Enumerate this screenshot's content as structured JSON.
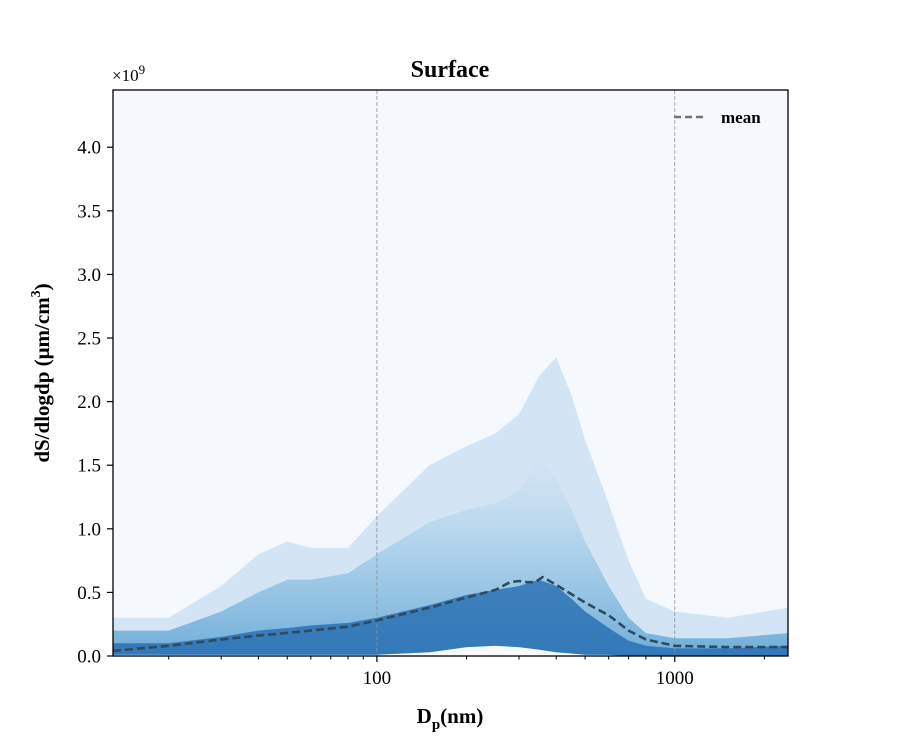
{
  "chart_data": {
    "type": "area",
    "title": "Surface",
    "xlabel": {
      "main": "D",
      "sub": "p",
      "rest": "(nm)"
    },
    "ylabel": {
      "main": "dS/dlogdp (μm/cm",
      "sup": "3",
      "end": ")"
    },
    "xscale": "log",
    "xlim": [
      13,
      2400
    ],
    "ylim": [
      0,
      4.45
    ],
    "y_multiplier": {
      "base": "×10",
      "exp": "9"
    },
    "x_ticks": [
      100,
      1000
    ],
    "x_tick_labels": [
      "100",
      "1000"
    ],
    "y_ticks": [
      0,
      0.5,
      1.0,
      1.5,
      2.0,
      2.5,
      3.0,
      3.5,
      4.0
    ],
    "y_tick_labels": [
      "0.0",
      "0.5",
      "1.0",
      "1.5",
      "2.0",
      "2.5",
      "3.0",
      "3.5",
      "4.0"
    ],
    "grid": {
      "x_major": true,
      "y": false
    },
    "legend": {
      "position": "top-right"
    },
    "colors": {
      "background": "#f5f9fe",
      "band_dark": "#1f67ad",
      "band_mid": "#4f9ad0",
      "band_light": "#b6d6ec",
      "mean": "#2f4a5e"
    },
    "series": [
      {
        "name": "mean",
        "style": "dashed",
        "x": [
          13,
          20,
          30,
          40,
          60,
          80,
          100,
          150,
          200,
          250,
          280,
          300,
          320,
          340,
          360,
          400,
          500,
          600,
          700,
          800,
          1000,
          1500,
          2400
        ],
        "y": [
          0.04,
          0.08,
          0.13,
          0.16,
          0.2,
          0.23,
          0.28,
          0.38,
          0.46,
          0.52,
          0.58,
          0.59,
          0.58,
          0.58,
          0.62,
          0.56,
          0.42,
          0.32,
          0.2,
          0.13,
          0.08,
          0.07,
          0.07
        ]
      }
    ],
    "envelope": {
      "x": [
        13,
        20,
        30,
        40,
        50,
        60,
        80,
        100,
        150,
        200,
        250,
        300,
        350,
        400,
        450,
        500,
        600,
        700,
        800,
        1000,
        1500,
        2400
      ],
      "upper": [
        0.3,
        0.3,
        0.55,
        0.8,
        0.9,
        0.85,
        0.85,
        1.1,
        1.5,
        1.65,
        1.75,
        1.9,
        2.2,
        2.35,
        2.05,
        1.7,
        1.2,
        0.75,
        0.45,
        0.35,
        0.3,
        0.38
      ],
      "core_upper": [
        0.2,
        0.2,
        0.35,
        0.5,
        0.6,
        0.6,
        0.65,
        0.8,
        1.05,
        1.15,
        1.2,
        1.3,
        1.55,
        1.4,
        1.15,
        0.9,
        0.55,
        0.3,
        0.18,
        0.14,
        0.14,
        0.18
      ],
      "dark_upper": [
        0.1,
        0.1,
        0.15,
        0.2,
        0.22,
        0.24,
        0.26,
        0.3,
        0.4,
        0.48,
        0.52,
        0.55,
        0.6,
        0.55,
        0.45,
        0.35,
        0.22,
        0.12,
        0.08,
        0.06,
        0.06,
        0.08
      ],
      "lower": [
        0.01,
        0.01,
        0.01,
        0.01,
        0.01,
        0.01,
        0.01,
        0.01,
        0.03,
        0.07,
        0.08,
        0.07,
        0.05,
        0.03,
        0.02,
        0.01,
        0.01,
        0.0,
        0.0,
        0.0,
        0.0,
        0.0
      ]
    }
  }
}
